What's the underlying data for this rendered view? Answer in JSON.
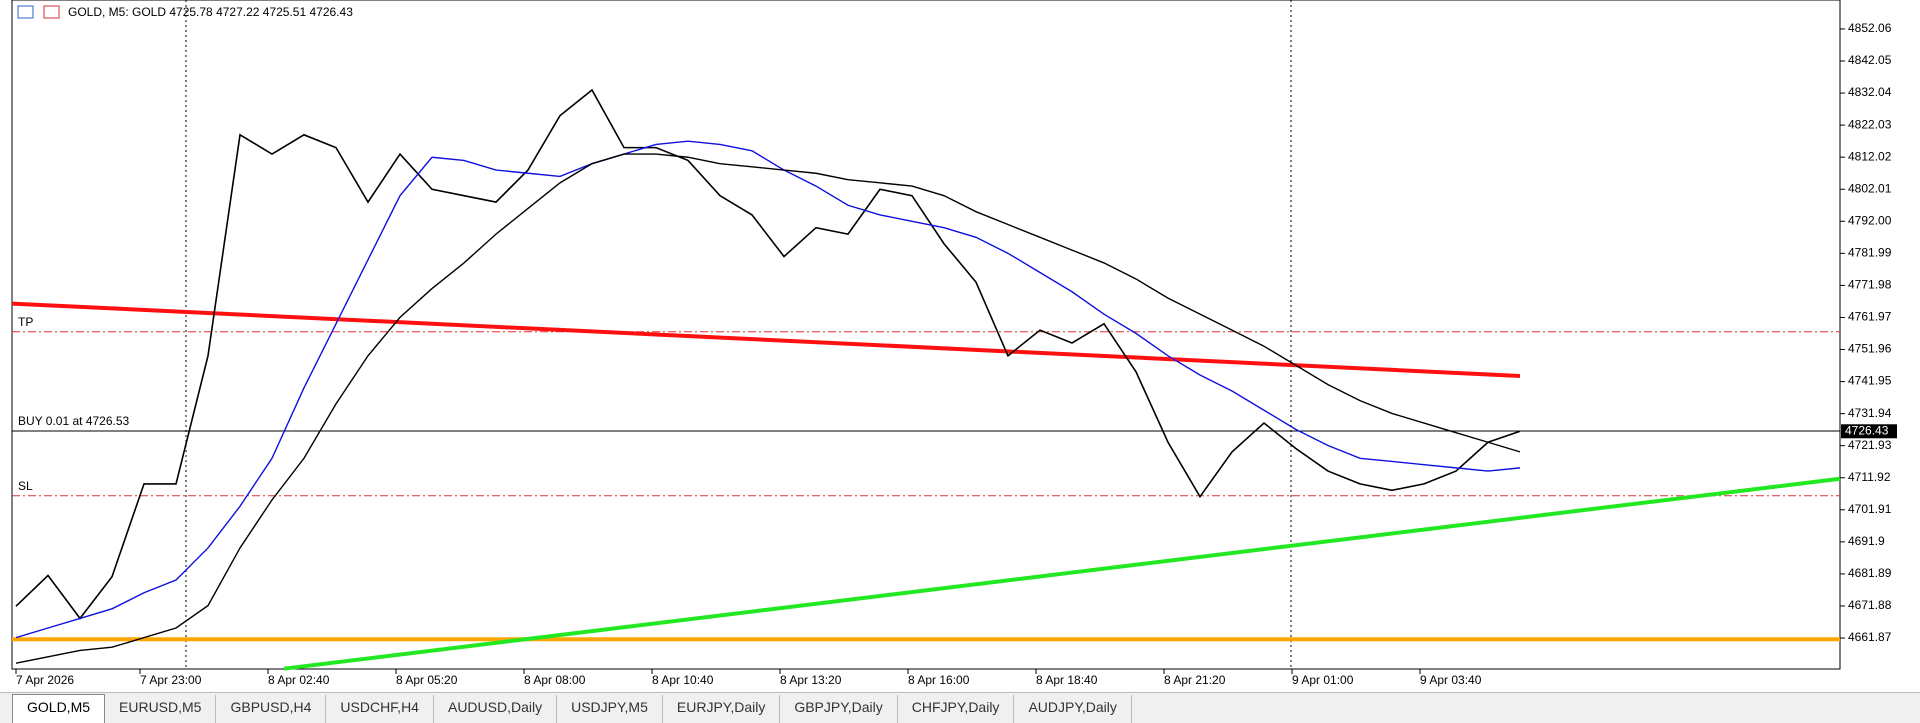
{
  "chart_data": {
    "type": "line",
    "title": "GOLD, M5:  GOLD  4725.78 4727.22 4725.51 4726.43",
    "x": [
      0,
      8,
      16,
      24,
      32,
      40,
      48,
      56,
      64,
      72,
      80,
      88,
      96,
      104,
      112,
      120,
      128,
      136,
      144,
      152,
      160,
      168,
      176,
      184,
      192,
      200,
      208,
      216,
      224,
      232,
      240,
      248,
      256,
      264,
      272,
      280,
      288,
      296,
      304,
      312,
      320,
      328,
      336,
      344,
      352,
      360,
      368,
      376
    ],
    "series": [
      {
        "color": "#000000",
        "width": 1.6,
        "values": [
          4671.8,
          4681.4,
          4668,
          4681,
          4710,
          4710,
          4750,
          4819,
          4813,
          4819,
          4815,
          4798,
          4813,
          4802,
          4800,
          4798,
          4808,
          4825,
          4833,
          4815,
          4815,
          4811,
          4800,
          4794,
          4781,
          4790,
          4788,
          4802,
          4800,
          4785,
          4773,
          4750,
          4758,
          4754,
          4760,
          4745,
          4723,
          4706,
          4720,
          4729,
          4721,
          4714,
          4710,
          4708,
          4710,
          4714,
          4723,
          4726.43
        ]
      },
      {
        "color": "#1010e0",
        "width": 1.4,
        "values": [
          4662,
          4665,
          4668,
          4671,
          4676,
          4680,
          4690,
          4703,
          4718,
          4740,
          4760,
          4780,
          4800,
          4812,
          4811,
          4808,
          4807,
          4806,
          4810,
          4813,
          4816,
          4817,
          4816,
          4814,
          4808,
          4803,
          4797,
          4794,
          4792,
          4790,
          4787,
          4782,
          4776,
          4770,
          4763,
          4757,
          4750,
          4744,
          4739,
          4733,
          4727,
          4722,
          4718,
          4717,
          4716,
          4715,
          4714,
          4715
        ]
      },
      {
        "color": "#000000",
        "width": 1.4,
        "values": [
          4654,
          4656,
          4658,
          4659,
          4662,
          4665,
          4672,
          4690,
          4705,
          4718,
          4735,
          4750,
          4762,
          4771,
          4779,
          4788,
          4796,
          4804,
          4810,
          4813,
          4813,
          4812,
          4810,
          4809,
          4808,
          4807,
          4805,
          4804,
          4803,
          4800,
          4795,
          4791,
          4787,
          4783,
          4779,
          4774,
          4768,
          4763,
          4758,
          4753,
          4747,
          4741,
          4736,
          4732,
          4729,
          4726,
          4723,
          4720
        ]
      }
    ],
    "xlim": [
      -1,
      456
    ],
    "ylim": [
      4652.2,
      4861.1
    ],
    "yticks": [
      4852.06,
      4842.05,
      4832.04,
      4822.03,
      4812.02,
      4802.01,
      {
        "value": 4792.0,
        "label": "4792.00"
      },
      4781.99,
      4771.98,
      4761.97,
      4751.96,
      4741.95,
      4731.94,
      4721.93,
      4711.92,
      4701.91,
      4691.9,
      4681.89,
      4671.88,
      4661.87
    ],
    "xticks": [
      {
        "value": 0,
        "label": "7 Apr 2026"
      },
      {
        "value": 31,
        "label": "7 Apr 23:00"
      },
      {
        "value": 63,
        "label": "8 Apr 02:40"
      },
      {
        "value": 95,
        "label": "8 Apr 05:20"
      },
      {
        "value": 127,
        "label": "8 Apr 08:00"
      },
      {
        "value": 159,
        "label": "8 Apr 10:40"
      },
      {
        "value": 191,
        "label": "8 Apr 13:20"
      },
      {
        "value": 223,
        "label": "8 Apr 16:00"
      },
      {
        "value": 255,
        "label": "8 Apr 18:40"
      },
      {
        "value": 287,
        "label": "8 Apr 21:20"
      },
      {
        "value": 319,
        "label": "9 Apr 01:00"
      },
      {
        "value": 351,
        "label": "9 Apr 03:40"
      }
    ],
    "levels": [
      {
        "label": "TP",
        "value": 4757.5,
        "color": "#e03030",
        "dash": true
      },
      {
        "label": "BUY 0.01 at 4726.53",
        "value": 4726.53,
        "color": "#000000",
        "dash": false
      },
      {
        "label": "SL",
        "value": 4706.3,
        "color": "#e03030",
        "dash": true
      },
      {
        "value": 4661.5,
        "color": "#ffa500",
        "dash": false,
        "width": 4
      }
    ],
    "trendlines": [
      {
        "color": "#ff1010",
        "x": [
          -1,
          376
        ],
        "y": [
          4766.3,
          4743.7
        ]
      },
      {
        "color": "#22e822",
        "x": [
          67,
          456
        ],
        "y": [
          4652.3,
          4711.6
        ]
      }
    ],
    "last_price": {
      "value": 4726.43,
      "label": "4726.43"
    }
  },
  "tabs": [
    "GOLD,M5",
    "EURUSD,M5",
    "GBPUSD,H4",
    "USDCHF,H4",
    "AUDUSD,Daily",
    "USDJPY,M5",
    "EURJPY,Daily",
    "GBPJPY,Daily",
    "CHFJPY,Daily",
    "AUDJPY,Daily"
  ]
}
